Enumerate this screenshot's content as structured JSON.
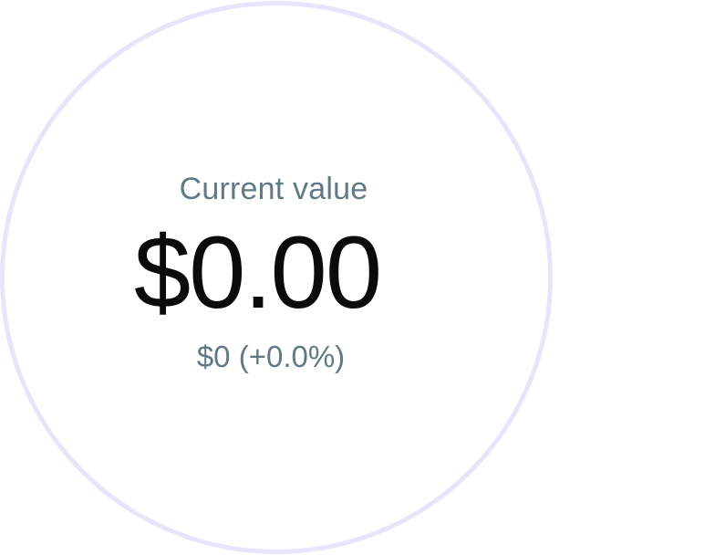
{
  "widget": {
    "label": "Current value",
    "amount": "$0.00",
    "change": "$0 (+0.0%)"
  },
  "colors": {
    "ring": "#e8e4fb",
    "label": "#5f7a85",
    "amount": "#0b0b0b",
    "background": "#ffffff"
  }
}
